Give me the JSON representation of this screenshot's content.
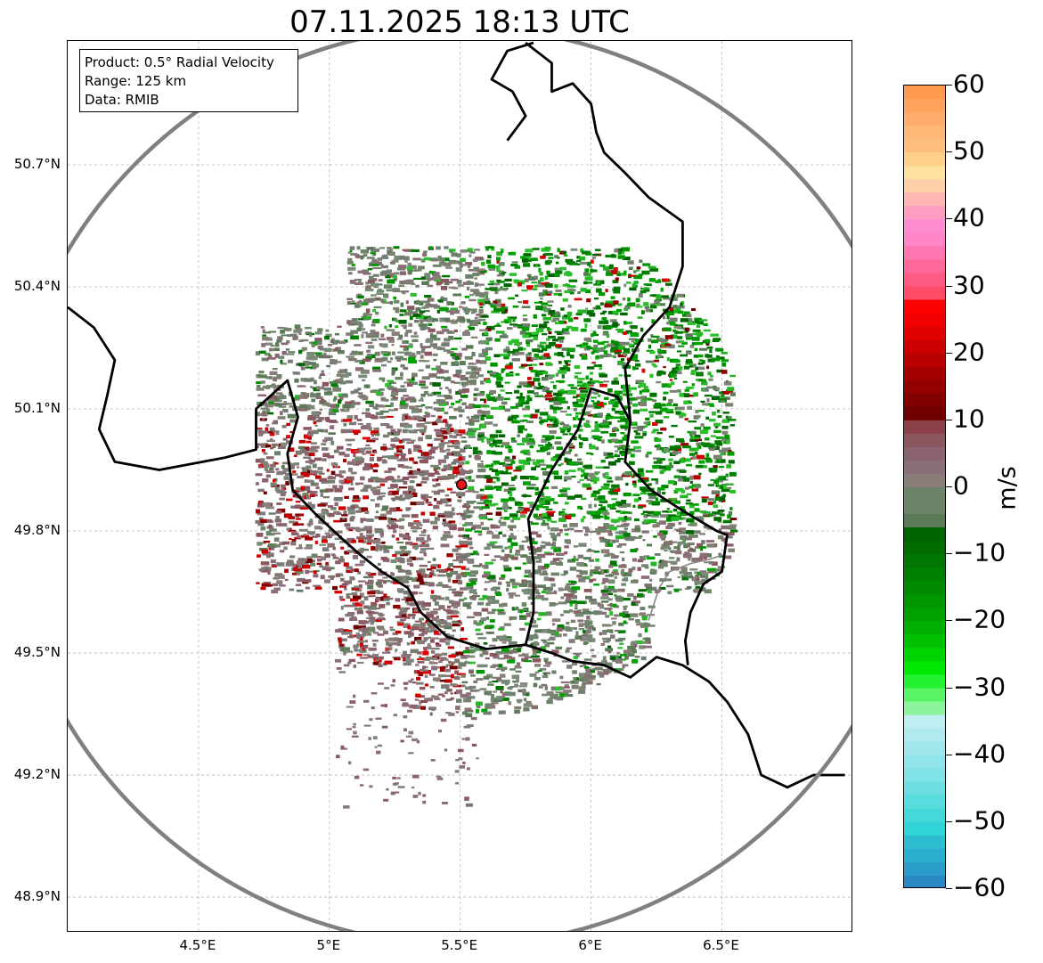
{
  "title": "07.11.2025 18:13 UTC",
  "info": {
    "product": "Product: 0.5° Radial Velocity",
    "range": "Range: 125 km",
    "source": "Data: RMIB"
  },
  "axes": {
    "lat_ticks": [
      "50.7°N",
      "50.4°N",
      "50.1°N",
      "49.8°N",
      "49.5°N",
      "49.2°N",
      "48.9°N"
    ],
    "lat_values": [
      50.7,
      50.4,
      50.1,
      49.8,
      49.5,
      49.2,
      48.9
    ],
    "lon_ticks": [
      "4.5°E",
      "5°E",
      "5.5°E",
      "6°E",
      "6.5°E"
    ],
    "lon_values": [
      4.5,
      5.0,
      5.5,
      6.0,
      6.5
    ],
    "lon_range": [
      4.0,
      7.0
    ],
    "lat_range": [
      48.8,
      51.0
    ],
    "grid": true
  },
  "radar": {
    "site_lon": 5.505,
    "site_lat": 49.914,
    "range_circle_color": "#808080",
    "site_color": "#e8141e"
  },
  "colorbar": {
    "unit": "m/s",
    "min": -60,
    "max": 60,
    "tick_values": [
      60,
      50,
      40,
      30,
      20,
      10,
      0,
      -10,
      -20,
      -30,
      -40,
      -50,
      -60
    ],
    "tick_labels": [
      "60",
      "50",
      "40",
      "30",
      "20",
      "10",
      "0",
      "−10",
      "−20",
      "−30",
      "−40",
      "−50",
      "−60"
    ],
    "bands": [
      {
        "from": 58,
        "to": 60,
        "color": "#ff9a50"
      },
      {
        "from": 56,
        "to": 58,
        "color": "#ffa35e"
      },
      {
        "from": 54,
        "to": 56,
        "color": "#ffac6c"
      },
      {
        "from": 52,
        "to": 54,
        "color": "#ffb877"
      },
      {
        "from": 50,
        "to": 52,
        "color": "#ffc07f"
      },
      {
        "from": 48,
        "to": 50,
        "color": "#ffd08c"
      },
      {
        "from": 46,
        "to": 48,
        "color": "#ffe1a0"
      },
      {
        "from": 44,
        "to": 46,
        "color": "#ffd0a8"
      },
      {
        "from": 42,
        "to": 44,
        "color": "#ffb7b4"
      },
      {
        "from": 40,
        "to": 42,
        "color": "#ff9cc2"
      },
      {
        "from": 38,
        "to": 40,
        "color": "#ff8cd0"
      },
      {
        "from": 36,
        "to": 38,
        "color": "#ff84c8"
      },
      {
        "from": 34,
        "to": 36,
        "color": "#ff76b0"
      },
      {
        "from": 32,
        "to": 34,
        "color": "#ff6898"
      },
      {
        "from": 30,
        "to": 32,
        "color": "#ff5a82"
      },
      {
        "from": 28,
        "to": 30,
        "color": "#ff4c68"
      },
      {
        "from": 26,
        "to": 28,
        "color": "#ff0000"
      },
      {
        "from": 24,
        "to": 26,
        "color": "#f20000"
      },
      {
        "from": 22,
        "to": 24,
        "color": "#e00000"
      },
      {
        "from": 20,
        "to": 22,
        "color": "#cc0000"
      },
      {
        "from": 18,
        "to": 20,
        "color": "#b80000"
      },
      {
        "from": 16,
        "to": 18,
        "color": "#a40000"
      },
      {
        "from": 14,
        "to": 16,
        "color": "#920000"
      },
      {
        "from": 12,
        "to": 14,
        "color": "#820000"
      },
      {
        "from": 10,
        "to": 12,
        "color": "#700000"
      },
      {
        "from": 8,
        "to": 10,
        "color": "#8a4148"
      },
      {
        "from": 6,
        "to": 8,
        "color": "#8a5660"
      },
      {
        "from": 4,
        "to": 6,
        "color": "#8a6470"
      },
      {
        "from": 2,
        "to": 4,
        "color": "#8a6e78"
      },
      {
        "from": 0,
        "to": 2,
        "color": "#8a7e7a"
      },
      {
        "from": -2,
        "to": 0,
        "color": "#7e8072"
      },
      {
        "from": -4,
        "to": 0,
        "color": "#6e8468"
      },
      {
        "from": -6,
        "to": -4,
        "color": "#5a7a58"
      },
      {
        "from": -8,
        "to": -6,
        "color": "#006400"
      },
      {
        "from": -10,
        "to": -8,
        "color": "#006c00"
      },
      {
        "from": -12,
        "to": -10,
        "color": "#007600"
      },
      {
        "from": -14,
        "to": -12,
        "color": "#008000"
      },
      {
        "from": -16,
        "to": -14,
        "color": "#008a00"
      },
      {
        "from": -18,
        "to": -16,
        "color": "#009600"
      },
      {
        "from": -20,
        "to": -18,
        "color": "#00a200"
      },
      {
        "from": -22,
        "to": -20,
        "color": "#00b000"
      },
      {
        "from": -24,
        "to": -22,
        "color": "#00c000"
      },
      {
        "from": -26,
        "to": -24,
        "color": "#00d400"
      },
      {
        "from": -28,
        "to": -26,
        "color": "#00e800"
      },
      {
        "from": -30,
        "to": -28,
        "color": "#24f230"
      },
      {
        "from": -32,
        "to": -30,
        "color": "#58f466"
      },
      {
        "from": -34,
        "to": -32,
        "color": "#8cf49c"
      },
      {
        "from": -36,
        "to": -34,
        "color": "#c0eef0"
      },
      {
        "from": -38,
        "to": -36,
        "color": "#b0eaee"
      },
      {
        "from": -40,
        "to": -38,
        "color": "#a0e6ec"
      },
      {
        "from": -42,
        "to": -40,
        "color": "#90e4ea"
      },
      {
        "from": -44,
        "to": -42,
        "color": "#80e2e6"
      },
      {
        "from": -46,
        "to": -44,
        "color": "#6cdee2"
      },
      {
        "from": -48,
        "to": -46,
        "color": "#58dcde"
      },
      {
        "from": -50,
        "to": -48,
        "color": "#44d8da"
      },
      {
        "from": -52,
        "to": -50,
        "color": "#30d4d6"
      },
      {
        "from": -54,
        "to": -52,
        "color": "#2ebcd0"
      },
      {
        "from": -56,
        "to": -54,
        "color": "#2ab0cc"
      },
      {
        "from": -58,
        "to": -56,
        "color": "#2a9ec8"
      },
      {
        "from": -60,
        "to": -58,
        "color": "#2a88c4"
      }
    ]
  },
  "borders": {
    "main": [
      [
        [
          4.0,
          50.35
        ],
        [
          4.1,
          50.3
        ],
        [
          4.18,
          50.22
        ],
        [
          4.15,
          50.13
        ],
        [
          4.12,
          50.05
        ],
        [
          4.18,
          49.97
        ],
        [
          4.35,
          49.95
        ],
        [
          4.6,
          49.98
        ],
        [
          4.72,
          50.0
        ],
        [
          4.72,
          50.1
        ],
        [
          4.84,
          50.17
        ],
        [
          4.88,
          50.08
        ],
        [
          4.84,
          49.99
        ],
        [
          4.86,
          49.9
        ],
        [
          4.95,
          49.84
        ],
        [
          5.05,
          49.78
        ],
        [
          5.12,
          49.74
        ],
        [
          5.2,
          49.7
        ],
        [
          5.3,
          49.66
        ],
        [
          5.35,
          49.6
        ],
        [
          5.45,
          49.54
        ],
        [
          5.6,
          49.51
        ],
        [
          5.75,
          49.52
        ],
        [
          5.85,
          49.5
        ],
        [
          5.93,
          49.48
        ],
        [
          6.05,
          49.47
        ],
        [
          6.15,
          49.44
        ],
        [
          6.25,
          49.49
        ],
        [
          6.35,
          49.47
        ],
        [
          6.45,
          49.43
        ],
        [
          6.52,
          49.38
        ],
        [
          6.6,
          49.3
        ],
        [
          6.65,
          49.2
        ],
        [
          6.75,
          49.17
        ],
        [
          6.85,
          49.2
        ],
        [
          6.97,
          49.2
        ]
      ],
      [
        [
          5.75,
          49.52
        ],
        [
          5.78,
          49.6
        ],
        [
          5.78,
          49.72
        ],
        [
          5.76,
          49.83
        ],
        [
          5.85,
          49.95
        ],
        [
          5.95,
          50.05
        ],
        [
          6.0,
          50.15
        ],
        [
          6.1,
          50.13
        ],
        [
          6.15,
          50.07
        ],
        [
          6.13,
          49.97
        ],
        [
          6.23,
          49.9
        ],
        [
          6.35,
          49.85
        ],
        [
          6.48,
          49.8
        ],
        [
          6.52,
          49.79
        ],
        [
          6.5,
          49.7
        ],
        [
          6.43,
          49.67
        ],
        [
          6.38,
          49.6
        ],
        [
          6.36,
          49.53
        ],
        [
          6.37,
          49.47
        ]
      ],
      [
        [
          6.15,
          50.07
        ],
        [
          6.13,
          50.2
        ],
        [
          6.2,
          50.28
        ],
        [
          6.3,
          50.35
        ],
        [
          6.35,
          50.45
        ],
        [
          6.35,
          50.56
        ],
        [
          6.22,
          50.62
        ],
        [
          6.13,
          50.68
        ],
        [
          6.05,
          50.73
        ],
        [
          6.02,
          50.78
        ],
        [
          6.0,
          50.85
        ],
        [
          5.93,
          50.9
        ],
        [
          5.85,
          50.88
        ],
        [
          5.85,
          50.95
        ],
        [
          5.75,
          51.0
        ]
      ],
      [
        [
          5.78,
          51.0
        ],
        [
          5.68,
          50.98
        ],
        [
          5.62,
          50.91
        ],
        [
          5.7,
          50.88
        ],
        [
          5.75,
          50.82
        ],
        [
          5.68,
          50.76
        ]
      ]
    ],
    "lux_inner": [
      [
        [
          6.22,
          49.58
        ],
        [
          6.26,
          49.66
        ],
        [
          6.3,
          49.7
        ],
        [
          6.38,
          49.72
        ],
        [
          6.45,
          49.73
        ],
        [
          6.5,
          49.74
        ]
      ]
    ],
    "color": "#000000"
  }
}
